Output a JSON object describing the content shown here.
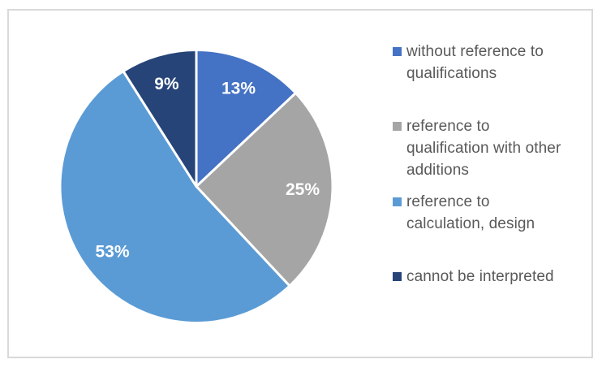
{
  "figure": {
    "background_color": "#FFFFFF",
    "border_color": "#D9D9D9"
  },
  "chart_data": {
    "type": "pie",
    "title": "",
    "direction": "clockwise",
    "start_angle_deg": 0,
    "legend_position": "right",
    "data_label_format": "percent",
    "data_label_color": "#FFFFFF",
    "slices": [
      {
        "label": "without reference to qualifications",
        "value": 13,
        "data_label": "13%",
        "color": "#4472C4"
      },
      {
        "label": "reference to qualification with other additions",
        "value": 25,
        "data_label": "25%",
        "color": "#A5A5A5"
      },
      {
        "label": "reference to calculation, design",
        "value": 53,
        "data_label": "53%",
        "color": "#5B9BD5"
      },
      {
        "label": "cannot be interpreted",
        "value": 9,
        "data_label": "9%",
        "color": "#264478"
      }
    ]
  },
  "legend": {
    "text_color": "#595959",
    "items": [
      {
        "lines": [
          "without reference to",
          "qualifications"
        ]
      },
      {
        "lines": [
          "reference to",
          "qualification with other",
          "additions"
        ]
      },
      {
        "lines": [
          "reference to",
          "calculation, design"
        ]
      },
      {
        "lines": [
          "cannot be interpreted"
        ]
      }
    ]
  }
}
